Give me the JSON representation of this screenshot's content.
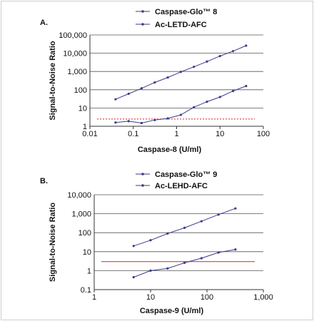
{
  "chart_data": [
    {
      "panel": "A.",
      "type": "line",
      "xlabel": "Caspase-8 (U/ml)",
      "ylabel": "Signal-to-Noise Ratio",
      "xscale": "log",
      "yscale": "log",
      "xlim": [
        0.01,
        100
      ],
      "ylim": [
        1,
        100000
      ],
      "xticks": [
        "0.01",
        "0.1",
        "1",
        "10",
        "100"
      ],
      "yticks": [
        "1",
        "10",
        "100",
        "1,000",
        "10,000",
        "100,000"
      ],
      "grid": "horizontal",
      "legend_position": "top",
      "threshold": {
        "y": 2.5,
        "color": "#dd2222",
        "style": "dotted"
      },
      "series": [
        {
          "name": "Caspase-Glo™ 8",
          "marker": "dot",
          "x": [
            0.039,
            0.078,
            0.156,
            0.3125,
            0.625,
            1.25,
            2.5,
            5,
            10,
            20,
            40
          ],
          "y": [
            30,
            60,
            120,
            250,
            470,
            950,
            1800,
            3500,
            7000,
            13000,
            26000
          ]
        },
        {
          "name": "Ac-LETD-AFC",
          "marker": "none",
          "x": [
            0.039,
            0.078,
            0.156,
            0.3125,
            0.625,
            1.25,
            2.5,
            5,
            10,
            20,
            40
          ],
          "y": [
            1.6,
            1.9,
            1.5,
            2.2,
            2.7,
            4.2,
            11,
            22,
            40,
            85,
            160
          ]
        }
      ],
      "colors": {
        "series": "#3a3a8c",
        "threshold": "#dd2222"
      }
    },
    {
      "panel": "B.",
      "type": "line",
      "xlabel": "Caspase-9 (U/ml)",
      "ylabel": "Signal-to-Noise Ratio",
      "xscale": "log",
      "yscale": "log",
      "xlim": [
        1,
        1000
      ],
      "ylim": [
        0.1,
        10000
      ],
      "xticks": [
        "1",
        "10",
        "100",
        "1,000"
      ],
      "yticks": [
        "0.1",
        "1",
        "10",
        "100",
        "1,000",
        "10,000"
      ],
      "grid": "horizontal",
      "legend_position": "top",
      "threshold": {
        "y": 3,
        "color": "#dd2222",
        "style": "solid"
      },
      "series": [
        {
          "name": "Caspase-Glo™ 9",
          "marker": "dot",
          "x": [
            5,
            10,
            20,
            40,
            80,
            160,
            320
          ],
          "y": [
            20,
            40,
            90,
            180,
            400,
            900,
            1900
          ]
        },
        {
          "name": "Ac-LEHD-AFC",
          "marker": "none",
          "x": [
            5,
            10,
            20,
            40,
            80,
            160,
            320
          ],
          "y": [
            0.45,
            1.0,
            1.3,
            2.6,
            4.5,
            9,
            13
          ]
        }
      ],
      "colors": {
        "series": "#3a3a8c",
        "threshold": "#dd2222"
      }
    }
  ]
}
